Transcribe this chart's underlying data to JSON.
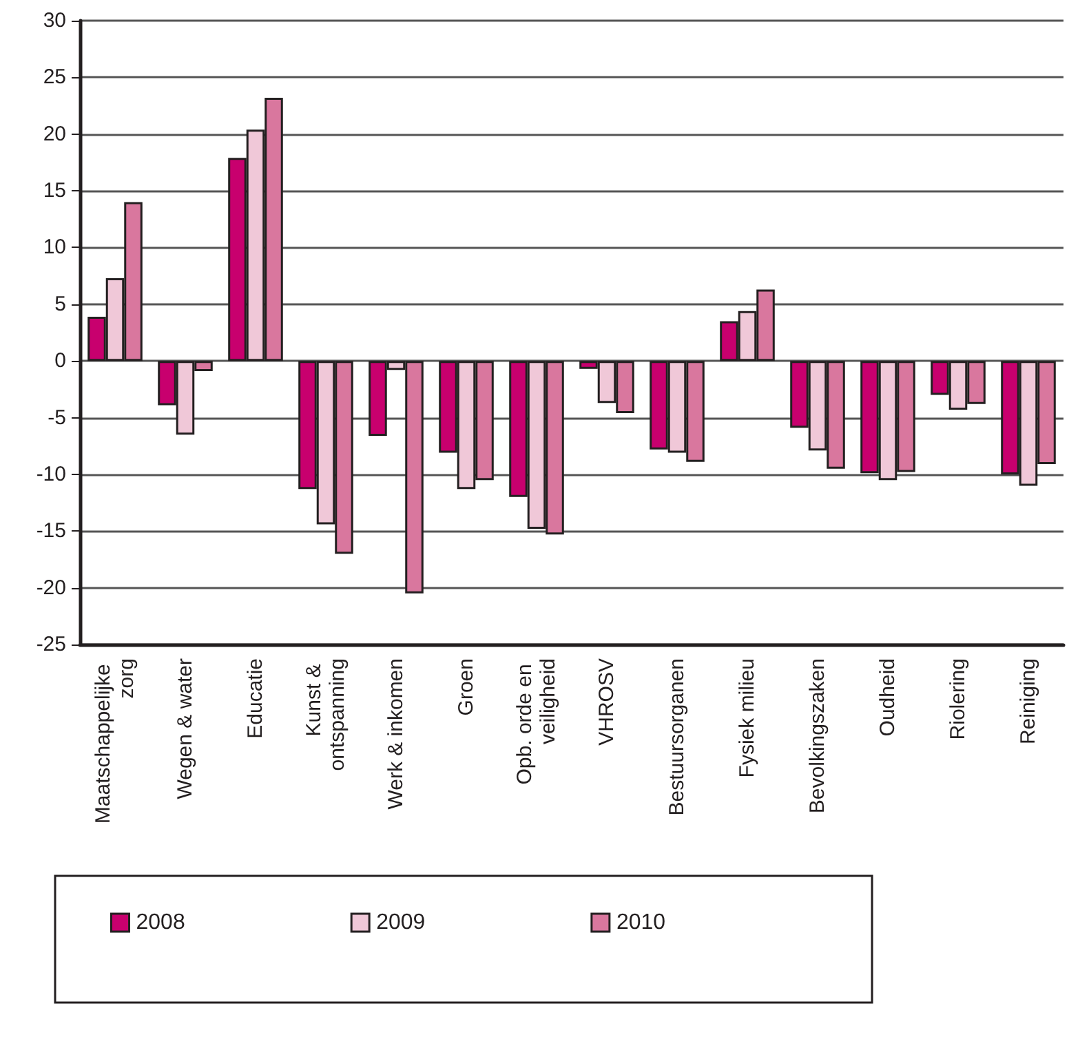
{
  "chart_data": {
    "type": "bar",
    "categories": [
      "Maatschappelijke zorg",
      "Wegen & water",
      "Educatie",
      "Kunst & ontspanning",
      "Werk & inkomen",
      "Groen",
      "Opb. orde en veiligheid",
      "VHROSV",
      "Bestuursorganen",
      "Fysiek milieu",
      "Bevolkingszaken",
      "Oudheid",
      "Riolering",
      "Reiniging"
    ],
    "series": [
      {
        "name": "2008",
        "color": "#c8006e",
        "values": [
          3.9,
          -3.9,
          17.9,
          -11.3,
          -6.6,
          -8.1,
          -12.0,
          -0.7,
          -7.8,
          3.5,
          -5.9,
          -9.9,
          -3.0,
          -10.0
        ]
      },
      {
        "name": "2009",
        "color": "#f0c8d8",
        "values": [
          7.3,
          -6.5,
          20.4,
          -14.4,
          -0.8,
          -11.3,
          -14.8,
          -3.7,
          -8.1,
          4.4,
          -7.9,
          -10.5,
          -4.3,
          -11.0
        ]
      },
      {
        "name": "2010",
        "color": "#d9779e",
        "values": [
          14.0,
          -0.9,
          23.2,
          -17.0,
          -20.5,
          -10.5,
          -15.3,
          -4.6,
          -8.9,
          6.3,
          -9.5,
          -9.8,
          -3.8,
          -9.1
        ]
      }
    ],
    "ylim": [
      -25,
      30
    ],
    "yticks": [
      -25,
      -20,
      -15,
      -10,
      -5,
      0,
      5,
      10,
      15,
      20,
      25,
      30
    ],
    "grid": "y",
    "legend": "bottom"
  }
}
